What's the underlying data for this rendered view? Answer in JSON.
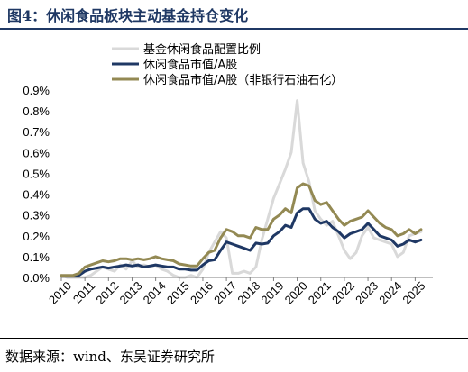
{
  "figure_title": "图4：休闲食品板块主动基金持仓变化",
  "source_note": "数据来源：wind、东吴证券研究所",
  "chart_data": {
    "type": "line",
    "title": "",
    "xlabel": "",
    "ylabel": "",
    "x_ticks": [
      "2010",
      "2011",
      "2012",
      "2013",
      "2014",
      "2015",
      "2016",
      "2017",
      "2018",
      "2019",
      "2020",
      "2021",
      "2022",
      "2023",
      "2024",
      "2025"
    ],
    "y_ticks": [
      "0.0%",
      "0.1%",
      "0.2%",
      "0.3%",
      "0.4%",
      "0.5%",
      "0.6%",
      "0.7%",
      "0.8%",
      "0.9%"
    ],
    "xlim": [
      2010,
      2025.75
    ],
    "ylim": [
      0,
      0.9
    ],
    "grid": false,
    "legend_position": "top",
    "x": [
      2010.0,
      2010.25,
      2010.5,
      2010.75,
      2011.0,
      2011.25,
      2011.5,
      2011.75,
      2012.0,
      2012.25,
      2012.5,
      2012.75,
      2013.0,
      2013.25,
      2013.5,
      2013.75,
      2014.0,
      2014.25,
      2014.5,
      2014.75,
      2015.0,
      2015.25,
      2015.5,
      2015.75,
      2016.0,
      2016.25,
      2016.5,
      2016.75,
      2017.0,
      2017.25,
      2017.5,
      2017.75,
      2018.0,
      2018.25,
      2018.5,
      2018.75,
      2019.0,
      2019.25,
      2019.5,
      2019.75,
      2020.0,
      2020.25,
      2020.5,
      2020.75,
      2021.0,
      2021.25,
      2021.5,
      2021.75,
      2022.0,
      2022.25,
      2022.5,
      2022.75,
      2023.0,
      2023.25,
      2023.5,
      2023.75,
      2024.0,
      2024.25,
      2024.5,
      2024.75,
      2025.0,
      2025.25
    ],
    "series": [
      {
        "name": "基金休闲食品配置比例",
        "color": "#d9d9d9",
        "values": [
          0.01,
          0.0,
          0.0,
          0.0,
          0.0,
          0.01,
          0.03,
          0.05,
          0.04,
          0.03,
          0.06,
          0.04,
          0.08,
          0.05,
          0.06,
          0.05,
          0.06,
          0.04,
          0.03,
          0.01,
          0.0,
          0.0,
          0.01,
          0.0,
          0.04,
          0.12,
          0.17,
          0.22,
          0.19,
          0.02,
          0.02,
          0.03,
          0.02,
          0.05,
          0.18,
          0.28,
          0.38,
          0.45,
          0.52,
          0.6,
          0.85,
          0.55,
          0.46,
          0.32,
          0.28,
          0.25,
          0.27,
          0.2,
          0.13,
          0.09,
          0.12,
          0.2,
          0.24,
          0.19,
          0.18,
          0.17,
          0.16,
          0.1,
          0.12,
          0.2,
          0.21,
          0.22
        ]
      },
      {
        "name": "休闲食品市值/A股",
        "color": "#1f3864",
        "values": [
          0.005,
          0.005,
          0.005,
          0.01,
          0.03,
          0.04,
          0.045,
          0.05,
          0.045,
          0.05,
          0.055,
          0.06,
          0.055,
          0.06,
          0.05,
          0.055,
          0.06,
          0.055,
          0.05,
          0.05,
          0.04,
          0.04,
          0.035,
          0.035,
          0.06,
          0.08,
          0.085,
          0.13,
          0.17,
          0.16,
          0.15,
          0.14,
          0.13,
          0.165,
          0.16,
          0.165,
          0.2,
          0.22,
          0.25,
          0.24,
          0.31,
          0.33,
          0.33,
          0.28,
          0.26,
          0.27,
          0.24,
          0.22,
          0.19,
          0.21,
          0.22,
          0.23,
          0.26,
          0.23,
          0.2,
          0.19,
          0.18,
          0.15,
          0.16,
          0.18,
          0.17,
          0.18
        ]
      },
      {
        "name": "休闲食品市值/A股（非银行石油石化）",
        "color": "#938953",
        "values": [
          0.01,
          0.01,
          0.01,
          0.02,
          0.05,
          0.06,
          0.07,
          0.08,
          0.075,
          0.08,
          0.09,
          0.09,
          0.085,
          0.09,
          0.085,
          0.09,
          0.1,
          0.09,
          0.085,
          0.08,
          0.065,
          0.06,
          0.055,
          0.055,
          0.09,
          0.12,
          0.13,
          0.19,
          0.23,
          0.22,
          0.2,
          0.2,
          0.19,
          0.24,
          0.23,
          0.23,
          0.28,
          0.3,
          0.33,
          0.31,
          0.43,
          0.45,
          0.44,
          0.37,
          0.35,
          0.36,
          0.32,
          0.28,
          0.25,
          0.27,
          0.28,
          0.29,
          0.32,
          0.29,
          0.26,
          0.24,
          0.23,
          0.2,
          0.21,
          0.23,
          0.21,
          0.23
        ]
      }
    ]
  }
}
